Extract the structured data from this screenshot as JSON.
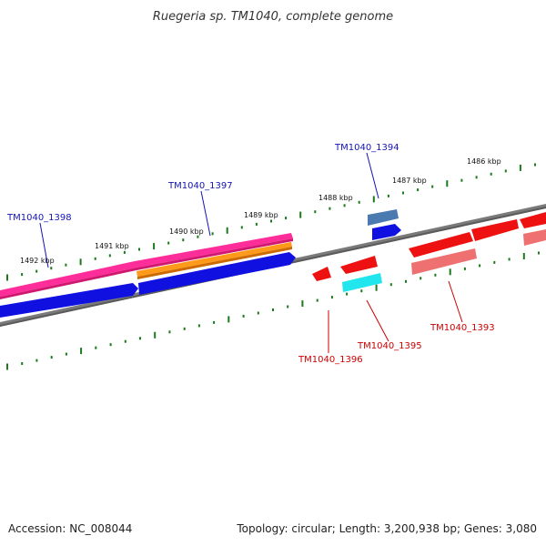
{
  "title": "Ruegeria sp. TM1040, complete genome",
  "footer": {
    "accession": "Accession: NC_008044",
    "topology": "Topology: circular; Length: 3,200,938 bp; Genes: 3,080"
  },
  "colors": {
    "backbone": "#7a7a7a",
    "tick": "#1b7a1b",
    "label_forward": "#1414b4",
    "label_reverse": "#cc0000",
    "cds_forward": "#1010e0",
    "cds_reverse": "#ee1111",
    "rrna": "#ff2d9a",
    "trna": "#ff9a1a",
    "cyan": "#22e6ee",
    "steel": "#4a7ab0",
    "pink": "#ee7070"
  },
  "chart_data": {
    "type": "genome-map",
    "strand_ticks_kbp": [
      "1492 kbp",
      "1491 kbp",
      "1490 kbp",
      "1489 kbp",
      "1488 kbp",
      "1487 kbp",
      "1486 kbp"
    ],
    "genes": [
      {
        "id": "TM1040_1398",
        "strand": "forward"
      },
      {
        "id": "TM1040_1397",
        "strand": "forward"
      },
      {
        "id": "TM1040_1394",
        "strand": "forward"
      },
      {
        "id": "TM1040_1396",
        "strand": "reverse"
      },
      {
        "id": "TM1040_1395",
        "strand": "reverse"
      },
      {
        "id": "TM1040_1393",
        "strand": "reverse"
      }
    ]
  }
}
